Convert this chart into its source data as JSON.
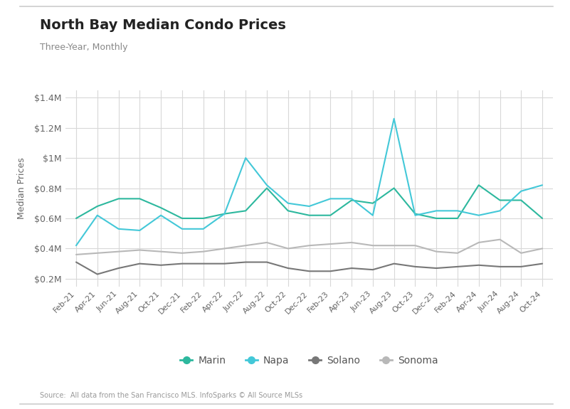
{
  "title": "North Bay Median Condo Prices",
  "subtitle": "Three-Year, Monthly",
  "ylabel": "Median Prices",
  "source": "Source:  All data from the San Francisco MLS. InfoSparks © All Source MLSs",
  "background_color": "#ffffff",
  "grid_color": "#d8d8d8",
  "ylim": [
    0.15,
    1.45
  ],
  "yticks": [
    0.2,
    0.4,
    0.6,
    0.8,
    1.0,
    1.2,
    1.4
  ],
  "ytick_labels": [
    "$0.2M",
    "$0.4M",
    "$0.6M",
    "$0.8M",
    "$1M",
    "$1.2M",
    "$1.4M"
  ],
  "x_labels": [
    "Feb-21",
    "Apr-21",
    "Jun-21",
    "Aug-21",
    "Oct-21",
    "Dec-21",
    "Feb-22",
    "Apr-22",
    "Jun-22",
    "Aug-22",
    "Oct-22",
    "Dec-22",
    "Feb-23",
    "Apr-23",
    "Jun-23",
    "Aug-23",
    "Oct-23",
    "Dec-23",
    "Feb-24",
    "Apr-24",
    "Jun-24",
    "Aug-24",
    "Oct-24"
  ],
  "colors": {
    "Marin": "#2db89e",
    "Napa": "#43c8d8",
    "Solano": "#777777",
    "Sonoma": "#b8b8b8"
  },
  "Marin": [
    0.6,
    0.68,
    0.73,
    0.73,
    0.67,
    0.6,
    0.6,
    0.63,
    0.65,
    0.8,
    0.65,
    0.62,
    0.62,
    0.72,
    0.7,
    0.8,
    0.63,
    0.6,
    0.6,
    0.82,
    0.72,
    0.72,
    0.6
  ],
  "Napa": [
    0.42,
    0.62,
    0.53,
    0.52,
    0.62,
    0.53,
    0.53,
    0.63,
    1.0,
    0.82,
    0.7,
    0.68,
    0.73,
    0.73,
    0.62,
    1.26,
    0.62,
    0.65,
    0.65,
    0.62,
    0.65,
    0.78,
    0.82
  ],
  "Solano": [
    0.31,
    0.23,
    0.27,
    0.3,
    0.29,
    0.3,
    0.3,
    0.3,
    0.31,
    0.31,
    0.27,
    0.25,
    0.25,
    0.27,
    0.26,
    0.3,
    0.28,
    0.27,
    0.28,
    0.29,
    0.28,
    0.28,
    0.3
  ],
  "Sonoma": [
    0.36,
    0.37,
    0.38,
    0.39,
    0.38,
    0.37,
    0.38,
    0.4,
    0.42,
    0.44,
    0.4,
    0.42,
    0.43,
    0.44,
    0.42,
    0.42,
    0.42,
    0.38,
    0.37,
    0.44,
    0.46,
    0.37,
    0.4
  ]
}
